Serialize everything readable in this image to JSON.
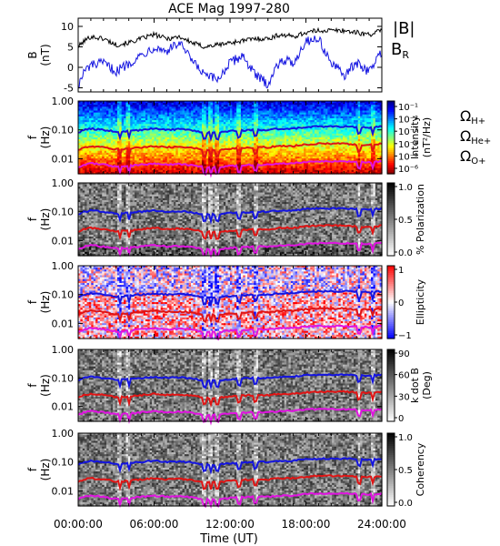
{
  "chart_data": {
    "title": "ACE Mag 1997-280",
    "xlabel": "Time (UT)",
    "x_ticks": [
      "00:00:00",
      "06:00:00",
      "12:00:00",
      "18:00:00",
      "24:00:00"
    ],
    "x_range_hours": [
      0,
      24
    ],
    "panels": [
      {
        "type": "line",
        "ylabel": [
          "B",
          "(nT)"
        ],
        "ylim": [
          -6,
          12
        ],
        "y_ticks": [
          10,
          5,
          0,
          -5
        ],
        "legend": [
          {
            "label": "|B|",
            "color": "#000000"
          },
          {
            "label": "B",
            "sub": "R",
            "color": "#1414e0"
          }
        ],
        "series": [
          {
            "name": "|B|",
            "color": "#000000",
            "x": [
              0,
              0.5,
              1,
              2,
              3,
              4,
              5,
              6,
              7,
              8,
              9,
              10,
              11,
              12,
              13,
              14,
              15,
              16,
              17,
              18,
              19,
              20,
              21,
              22,
              23,
              24
            ],
            "values": [
              5,
              6.5,
              7.5,
              7,
              5.5,
              6,
              7,
              8,
              7,
              7.5,
              6,
              5,
              5.5,
              6,
              6.5,
              7,
              7,
              8,
              7.5,
              8.5,
              9,
              9,
              9,
              8.5,
              8,
              9
            ]
          },
          {
            "name": "B_R",
            "color": "#1414e0",
            "x": [
              0,
              0.5,
              1,
              2,
              3,
              4,
              5,
              6,
              7,
              8,
              9,
              10,
              11,
              12,
              13,
              14,
              15,
              16,
              17,
              18,
              19,
              20,
              21,
              22,
              23,
              24
            ],
            "values": [
              -4.5,
              -1,
              0.5,
              1,
              -1,
              1,
              3,
              5,
              4,
              6,
              1.5,
              -2,
              -3,
              1,
              3,
              -2,
              -4,
              2,
              1,
              6.5,
              7,
              1,
              -2,
              1,
              -1,
              4
            ]
          }
        ]
      },
      {
        "type": "heatmap",
        "ylabel": [
          "f",
          "(Hz)"
        ],
        "colorbar": {
          "type": "intensity",
          "ticks": [
            "10⁻¹",
            "10⁻²",
            "10⁻³",
            "10⁻⁴",
            "10⁻⁵",
            "10⁻⁶"
          ],
          "label": [
            "Intensity",
            "(nT²/Hz)"
          ]
        },
        "annotations": [
          {
            "label": "Ω",
            "sub": "H+",
            "color": "#1414e0"
          },
          {
            "label": "Ω",
            "sub": "He+",
            "color": "#e01414"
          },
          {
            "label": "Ω",
            "sub": "O+",
            "color": "#e014e0"
          }
        ]
      },
      {
        "type": "heatmap",
        "ylabel": [
          "f",
          "(Hz)"
        ],
        "colorbar": {
          "type": "gray",
          "ticks": [
            "1.0",
            "0.5",
            "0.0"
          ],
          "label": [
            "% Polarization"
          ]
        }
      },
      {
        "type": "heatmap",
        "ylabel": [
          "f",
          "(Hz)"
        ],
        "colorbar": {
          "type": "bwr",
          "ticks": [
            "1",
            "0",
            "−1"
          ],
          "label": [
            "Ellipticity"
          ]
        }
      },
      {
        "type": "heatmap",
        "ylabel": [
          "f",
          "(Hz)"
        ],
        "colorbar": {
          "type": "gray",
          "ticks": [
            "90",
            "60",
            "30",
            "0"
          ],
          "label": [
            "k dot B",
            "(Deg)"
          ]
        }
      },
      {
        "type": "heatmap",
        "ylabel": [
          "f",
          "(Hz)"
        ],
        "colorbar": {
          "type": "gray",
          "ticks": [
            "1.0",
            "0.5",
            "0.0"
          ],
          "label": [
            "Coherency"
          ]
        }
      }
    ],
    "frequency_axis": {
      "scale": "log",
      "ylim": [
        0.003,
        1.0
      ],
      "y_ticks": [
        "1.00",
        "0.10",
        "0.01"
      ],
      "y_tick_values": [
        1.0,
        0.1,
        0.01
      ]
    },
    "gyrofrequency_lines": {
      "x": [
        0,
        0.5,
        1,
        2,
        3,
        4,
        5,
        6,
        7,
        8,
        9,
        10,
        11,
        12,
        13,
        14,
        15,
        16,
        17,
        18,
        19,
        20,
        21,
        22,
        23,
        24
      ],
      "H+": [
        0.08,
        0.1,
        0.11,
        0.1,
        0.085,
        0.09,
        0.1,
        0.11,
        0.1,
        0.105,
        0.095,
        0.08,
        0.08,
        0.09,
        0.095,
        0.1,
        0.1,
        0.11,
        0.11,
        0.125,
        0.13,
        0.13,
        0.13,
        0.125,
        0.12,
        0.13
      ],
      "He+": [
        0.02,
        0.025,
        0.0275,
        0.025,
        0.021,
        0.022,
        0.025,
        0.0275,
        0.025,
        0.026,
        0.024,
        0.02,
        0.02,
        0.022,
        0.024,
        0.025,
        0.025,
        0.0275,
        0.0275,
        0.031,
        0.033,
        0.033,
        0.033,
        0.031,
        0.03,
        0.033
      ],
      "O+": [
        0.005,
        0.0062,
        0.0069,
        0.0062,
        0.0053,
        0.0056,
        0.0062,
        0.0069,
        0.0062,
        0.0066,
        0.006,
        0.005,
        0.005,
        0.0056,
        0.006,
        0.0062,
        0.0062,
        0.0069,
        0.0069,
        0.0078,
        0.0081,
        0.0081,
        0.0081,
        0.0078,
        0.0075,
        0.0081
      ]
    },
    "colors": {
      "H+": "#1414e0",
      "He+": "#e01414",
      "O+": "#e014e0"
    }
  }
}
